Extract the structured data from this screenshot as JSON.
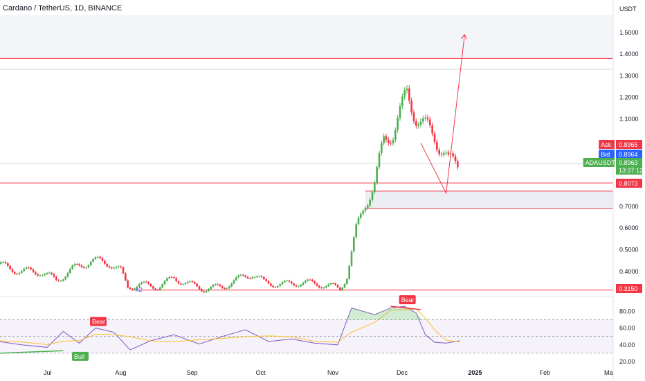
{
  "header": {
    "title": "Cardano / TetherUS, 1D, BINANCE",
    "currency": "USDT"
  },
  "chart_data": [
    {
      "type": "candlestick",
      "title": "Cardano / TetherUS, 1D, BINANCE",
      "ylabel": "USDT",
      "y_ticks": [
        0.4,
        0.5,
        0.6,
        0.7,
        1.1,
        1.2,
        1.3,
        1.4,
        1.5
      ],
      "y_tick_labels": [
        "0.4000",
        "0.5000",
        "0.6000",
        "0.7000",
        "1.1000",
        "1.2000",
        "1.3000",
        "1.4000",
        "1.5000"
      ],
      "x_labels": [
        {
          "label": "Jul",
          "date": "2024-07-01"
        },
        {
          "label": "Aug",
          "date": "2024-08-01"
        },
        {
          "label": "Sep",
          "date": "2024-09-01"
        },
        {
          "label": "Oct",
          "date": "2024-10-01"
        },
        {
          "label": "Nov",
          "date": "2024-11-01"
        },
        {
          "label": "Dec",
          "date": "2024-12-01"
        },
        {
          "label": "2025",
          "date": "2025-01-01"
        },
        {
          "label": "Feb",
          "date": "2025-02-01"
        },
        {
          "label": "Ma",
          "date": "2025-03-01"
        }
      ],
      "close_path": [
        [
          "2024-06-01",
          0.45
        ],
        [
          "2024-06-10",
          0.43
        ],
        [
          "2024-06-20",
          0.4
        ],
        [
          "2024-06-28",
          0.4
        ],
        [
          "2024-07-05",
          0.36
        ],
        [
          "2024-07-12",
          0.41
        ],
        [
          "2024-07-20",
          0.45
        ],
        [
          "2024-07-28",
          0.44
        ],
        [
          "2024-08-02",
          0.4
        ],
        [
          "2024-08-05",
          0.33
        ],
        [
          "2024-08-10",
          0.34
        ],
        [
          "2024-08-18",
          0.33
        ],
        [
          "2024-08-25",
          0.37
        ],
        [
          "2024-09-01",
          0.34
        ],
        [
          "2024-09-07",
          0.32
        ],
        [
          "2024-09-15",
          0.33
        ],
        [
          "2024-09-25",
          0.38
        ],
        [
          "2024-09-28",
          0.39
        ],
        [
          "2024-10-03",
          0.35
        ],
        [
          "2024-10-10",
          0.34
        ],
        [
          "2024-10-20",
          0.35
        ],
        [
          "2024-10-28",
          0.34
        ],
        [
          "2024-11-02",
          0.33
        ],
        [
          "2024-11-05",
          0.32
        ],
        [
          "2024-11-08",
          0.38
        ],
        [
          "2024-11-12",
          0.59
        ],
        [
          "2024-11-16",
          0.72
        ],
        [
          "2024-11-20",
          0.8
        ],
        [
          "2024-11-24",
          1.0
        ],
        [
          "2024-11-28",
          1.05
        ],
        [
          "2024-12-02",
          1.15
        ],
        [
          "2024-12-04",
          1.21
        ],
        [
          "2024-12-08",
          1.12
        ],
        [
          "2024-12-12",
          1.06
        ],
        [
          "2024-12-16",
          1.02
        ],
        [
          "2024-12-20",
          0.95
        ],
        [
          "2024-12-22",
          0.9
        ],
        [
          "2024-12-27",
          0.8963
        ]
      ],
      "horizontal_levels": [
        1.38,
        1.33,
        0.8073,
        0.77,
        0.69,
        0.315
      ],
      "zones": [
        {
          "from": 1.38,
          "to": 1.58
        },
        {
          "from": 0.69,
          "to": 0.77
        }
      ],
      "projection": [
        [
          "2024-12-21",
          0.76
        ],
        [
          "2024-12-29",
          1.49
        ]
      ],
      "annotations": [
        "x2"
      ],
      "price_tags": [
        {
          "label": "Ask",
          "value": "0.8965",
          "color": "#f23645"
        },
        {
          "label": "Bid",
          "value": "0.8964",
          "color": "#2962ff"
        },
        {
          "label": "ADAUSDT",
          "value": "0.8963",
          "sub": "13:37:12",
          "color": "#4caf50"
        },
        {
          "label": "",
          "value": "0.8073",
          "color": "#f23645"
        },
        {
          "label": "",
          "value": "0.3150",
          "color": "#f23645"
        }
      ]
    },
    {
      "type": "line",
      "title": "RSI",
      "y_ticks": [
        20,
        40,
        60,
        80
      ],
      "y_tick_labels": [
        "20.00",
        "40.00",
        "60.00",
        "80.00"
      ],
      "bands": [
        30,
        50,
        70
      ],
      "rsi": [
        [
          "2024-06-01",
          46
        ],
        [
          "2024-06-10",
          44
        ],
        [
          "2024-06-20",
          40
        ],
        [
          "2024-07-01",
          37
        ],
        [
          "2024-07-08",
          56
        ],
        [
          "2024-07-15",
          42
        ],
        [
          "2024-07-22",
          60
        ],
        [
          "2024-07-30",
          55
        ],
        [
          "2024-08-06",
          34
        ],
        [
          "2024-08-15",
          45
        ],
        [
          "2024-08-25",
          52
        ],
        [
          "2024-09-05",
          41
        ],
        [
          "2024-09-15",
          50
        ],
        [
          "2024-09-25",
          58
        ],
        [
          "2024-10-05",
          44
        ],
        [
          "2024-10-15",
          47
        ],
        [
          "2024-10-25",
          42
        ],
        [
          "2024-11-04",
          40
        ],
        [
          "2024-11-10",
          84
        ],
        [
          "2024-11-20",
          76
        ],
        [
          "2024-11-27",
          84
        ],
        [
          "2024-12-03",
          86
        ],
        [
          "2024-12-08",
          78
        ],
        [
          "2024-12-12",
          52
        ],
        [
          "2024-12-16",
          43
        ],
        [
          "2024-12-21",
          42
        ],
        [
          "2024-12-27",
          45
        ]
      ],
      "signals": [
        {
          "label": "Bear",
          "date": "2024-07-22",
          "value": 60,
          "color": "#f23645"
        },
        {
          "label": "Bull",
          "date": "2024-07-01",
          "value": 30,
          "color": "#4caf50"
        },
        {
          "label": "Bear",
          "date": "2024-12-03",
          "value": 86,
          "color": "#f23645"
        }
      ]
    }
  ]
}
